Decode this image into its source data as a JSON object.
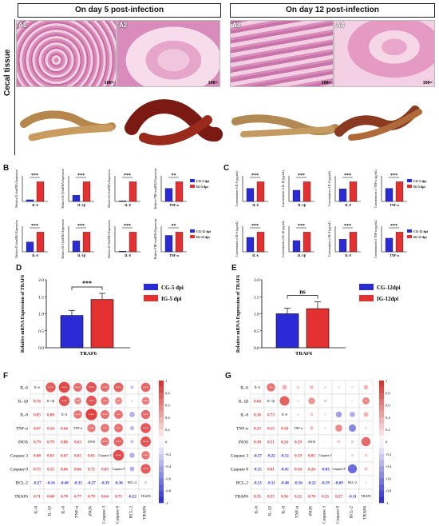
{
  "headers": {
    "left": "On day 5 post-infection",
    "right": "On day 12 post-infection"
  },
  "side_label": "Cecal tissue",
  "panels": {
    "A1": "A1",
    "A2": "A2",
    "A3": "A3",
    "A4": "A4",
    "B": "B",
    "C": "C",
    "D": "D",
    "E": "E",
    "F": "F",
    "G": "G"
  },
  "magnification": "100×",
  "colors": {
    "control": "#2b2bd6",
    "infected": "#e33030",
    "pos": "#e03030",
    "neg": "#2a2ad0"
  },
  "legends": {
    "cg5": "CG-5 dpi",
    "ig5": "IG-5 dpi",
    "cg12": "CG-12 dpi",
    "ig12": "IG-12 dpi",
    "cg12b": "CG-12dpi",
    "ig12b": "IG-12dpi"
  },
  "chart_data": [
    {
      "type": "bar",
      "panel": "B-top",
      "series_names": [
        "CG-5 dpi",
        "IG-5 dpi"
      ],
      "charts": [
        {
          "category": "IL-6",
          "ylabel": "Relative IL-6 mRNA Expression",
          "values": [
            0.3,
            3.6
          ],
          "sig": "***"
        },
        {
          "category": "IL-1β",
          "ylabel": "Relative IL-1β mRNA Expression",
          "values": [
            1.0,
            3.2
          ],
          "sig": "***"
        },
        {
          "category": "IL-8",
          "ylabel": "Relative IL-8 mRNA Expression",
          "values": [
            0.1,
            3.0
          ],
          "sig": "***"
        },
        {
          "category": "TNF-α",
          "ylabel": "Relative TNF-α mRNA Expression",
          "values": [
            1.0,
            1.5
          ],
          "sig": "**"
        }
      ]
    },
    {
      "type": "bar",
      "panel": "B-bottom",
      "series_names": [
        "CG-12 dpi",
        "IG-12 dpi"
      ],
      "charts": [
        {
          "category": "IL-6",
          "ylabel": "Relative IL-6 mRNA Expression",
          "values": [
            1.0,
            2.0
          ],
          "sig": "***"
        },
        {
          "category": "IL-1β",
          "ylabel": "Relative IL-1β mRNA Expression",
          "values": [
            1.0,
            1.8
          ],
          "sig": "***"
        },
        {
          "category": "IL-8",
          "ylabel": "Relative IL-8 mRNA Expression",
          "values": [
            0.1,
            2.8
          ],
          "sig": "***"
        },
        {
          "category": "TNF-α",
          "ylabel": "Relative TNF-α mRNA Expression",
          "values": [
            1.0,
            1.2
          ],
          "sig": "**"
        }
      ]
    },
    {
      "type": "bar",
      "panel": "C-top",
      "series_names": [
        "CG-5 dpi",
        "IG-5 dpi"
      ],
      "charts": [
        {
          "category": "IL-6",
          "ylabel": "Concentration of IL-6 (pg/mL)",
          "values": [
            50,
            75
          ],
          "sig": "***"
        },
        {
          "category": "IL-1β",
          "ylabel": "Concentration of IL-1β (pg/mL)",
          "values": [
            40,
            70
          ],
          "sig": "***"
        },
        {
          "category": "IL-8",
          "ylabel": "Concentration of IL-8 (pg/mL)",
          "values": [
            45,
            70
          ],
          "sig": "***"
        },
        {
          "category": "TNF-α",
          "ylabel": "Concentration of TNF-α (pg/mL)",
          "values": [
            50,
            75
          ],
          "sig": "***"
        }
      ]
    },
    {
      "type": "bar",
      "panel": "C-bottom",
      "series_names": [
        "CG-12 dpi",
        "IG-12 dpi"
      ],
      "charts": [
        {
          "category": "IL-6",
          "ylabel": "Concentration of IL-6 (pg/mL)",
          "values": [
            55,
            75
          ],
          "sig": "***"
        },
        {
          "category": "IL-1β",
          "ylabel": "Concentration of IL-1β (pg/mL)",
          "values": [
            40,
            70
          ],
          "sig": "***"
        },
        {
          "category": "IL-8",
          "ylabel": "Concentration of IL-8 (pg/mL)",
          "values": [
            45,
            70
          ],
          "sig": "***"
        },
        {
          "category": "TNF-α",
          "ylabel": "Concentration of TNF-α (pg/mL)",
          "values": [
            45,
            65
          ],
          "sig": "***"
        }
      ]
    },
    {
      "type": "bar",
      "panel": "D",
      "categories": [
        "TRAF6"
      ],
      "ylabel": "Relative mRNA Expression of TRAF6",
      "ylim": [
        0,
        2.0
      ],
      "yticks": [
        "0.0",
        "0.5",
        "1.0",
        "1.5",
        "2.0"
      ],
      "series": [
        {
          "name": "CG-5 dpi",
          "values": [
            0.95
          ],
          "err": [
            0.15
          ]
        },
        {
          "name": "IG-5 dpi",
          "values": [
            1.42
          ],
          "err": [
            0.18
          ]
        }
      ],
      "sig": "***"
    },
    {
      "type": "bar",
      "panel": "E",
      "categories": [
        "TRAF6"
      ],
      "ylabel": "Relative mRNA Expression of TRAF6",
      "ylim": [
        0,
        2.0
      ],
      "yticks": [
        "0.0",
        "0.5",
        "1.0",
        "1.5",
        "2.0"
      ],
      "series": [
        {
          "name": "CG-12dpi",
          "values": [
            1.0
          ],
          "err": [
            0.16
          ]
        },
        {
          "name": "IG-12dpi",
          "values": [
            1.15
          ],
          "err": [
            0.2
          ]
        }
      ],
      "sig": "ns"
    },
    {
      "type": "heatmap",
      "panel": "F",
      "labels": [
        "IL-6",
        "IL-1β",
        "IL-8",
        "TNF-α",
        "iNOS",
        "Caspase 3",
        "Caspase 8",
        "BCL-2",
        "TRAF6"
      ],
      "colorbar_ticks": [
        "1",
        "0.8",
        "0.6",
        "0.4",
        "0.2",
        "0",
        "-0.2",
        "-0.4",
        "-0.6",
        "-0.8",
        "-1"
      ],
      "lower": [
        [
          0.76
        ],
        [
          0.85,
          0.8
        ],
        [
          0.67,
          0.54,
          0.64
        ],
        [
          0.79,
          0.79,
          0.88,
          0.63
        ],
        [
          0.68,
          0.63,
          0.67,
          0.65,
          0.65
        ],
        [
          0.73,
          0.55,
          0.66,
          0.66,
          0.72,
          0.83
        ],
        [
          -0.27,
          -0.16,
          -0.4,
          -0.32,
          -0.27,
          -0.39,
          -0.36
        ],
        [
          0.71,
          0.6,
          0.7,
          0.77,
          0.79,
          0.64,
          0.75,
          -0.22
        ]
      ],
      "upper_sig": [
        [
          "***",
          "***",
          "***",
          "***",
          "***",
          "***",
          "",
          "***"
        ],
        [
          "***",
          "**",
          "***",
          "**",
          "**",
          "",
          "***"
        ],
        [
          "***",
          "***",
          "***",
          "**",
          "*",
          "***"
        ],
        [
          "***",
          "**",
          "**",
          "",
          "***"
        ],
        [
          "***",
          "***",
          "",
          "***"
        ],
        [
          "***",
          "*",
          "***"
        ],
        [
          "",
          "***"
        ],
        [
          ""
        ]
      ]
    },
    {
      "type": "heatmap",
      "panel": "G",
      "labels": [
        "IL-6",
        "IL-1β",
        "IL-8",
        "TNF-α",
        "iNOS",
        "Caspase 3",
        "Caspase 8",
        "BCL-2",
        "TRAF6"
      ],
      "colorbar_ticks": [
        "1",
        "0.8",
        "0.6",
        "0.4",
        "0.2",
        "0",
        "-0.2",
        "-0.4",
        "-0.6",
        "-0.8",
        "-1"
      ],
      "lower": [
        [
          0.64
        ],
        [
          0.36,
          0.73
        ],
        [
          0.23,
          0.15,
          0.18
        ],
        [
          0.3,
          0.51,
          0.24,
          0.29
        ],
        [
          -0.17,
          -0.22,
          -0.12,
          0.19,
          0.05
        ],
        [
          -0.15,
          0.01,
          -0.45,
          0.54,
          0.24,
          -0.03
        ],
        [
          -0.13,
          -0.11,
          -0.4,
          -0.56,
          -0.22,
          -0.19,
          -0.69
        ],
        [
          0.35,
          0.55,
          0.36,
          0.22,
          0.7,
          0.23,
          0.27,
          -0.11
        ]
      ],
      "upper_sig": [
        [
          "**",
          "",
          "",
          "",
          "",
          "",
          "",
          ""
        ],
        [
          "",
          "",
          "*",
          "",
          "",
          "",
          "*"
        ],
        [
          "",
          "",
          "",
          "",
          "",
          ""
        ],
        [
          "",
          "*",
          "",
          "",
          "**"
        ],
        [
          "",
          "",
          "",
          ""
        ],
        [
          "",
          "",
          ""
        ],
        [
          "",
          ""
        ],
        [
          ""
        ]
      ]
    }
  ]
}
